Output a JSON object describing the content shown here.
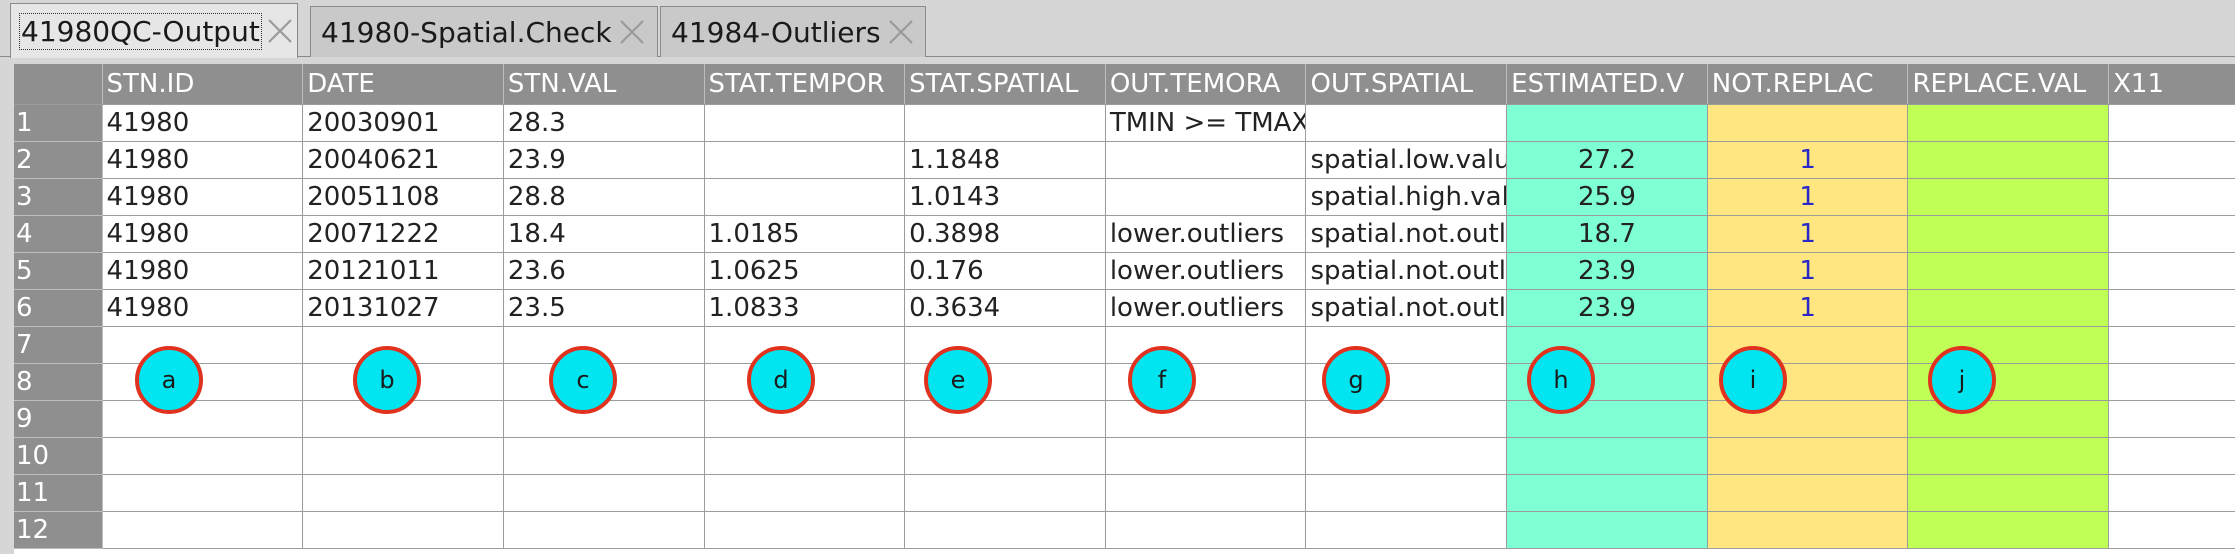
{
  "tabs": [
    {
      "label": "41980QC-Output",
      "active": true
    },
    {
      "label": "41980-Spatial.Check",
      "active": false
    },
    {
      "label": "41984-Outliers",
      "active": false
    }
  ],
  "grid": {
    "columns": [
      "STN.ID",
      "DATE",
      "STN.VAL",
      "STAT.TEMPOR",
      "STAT.SPATIAL",
      "OUT.TEMORA",
      "OUT.SPATIAL",
      "ESTIMATED.V",
      "NOT.REPLAC",
      "REPLACE.VAL",
      "X11"
    ],
    "rows": [
      {
        "num": "1",
        "cells": [
          "41980",
          "20030901",
          "28.3",
          "",
          "",
          "TMIN >= TMAX",
          "",
          "",
          "",
          "",
          ""
        ]
      },
      {
        "num": "2",
        "cells": [
          "41980",
          "20040621",
          "23.9",
          "",
          "1.1848",
          "",
          "spatial.low.valu",
          "27.2",
          "1",
          "",
          ""
        ]
      },
      {
        "num": "3",
        "cells": [
          "41980",
          "20051108",
          "28.8",
          "",
          "1.0143",
          "",
          "spatial.high.val",
          "25.9",
          "1",
          "",
          ""
        ]
      },
      {
        "num": "4",
        "cells": [
          "41980",
          "20071222",
          "18.4",
          "1.0185",
          "0.3898",
          "lower.outliers",
          "spatial.not.outli",
          "18.7",
          "1",
          "",
          ""
        ]
      },
      {
        "num": "5",
        "cells": [
          "41980",
          "20121011",
          "23.6",
          "1.0625",
          "0.176",
          "lower.outliers",
          "spatial.not.outli",
          "23.9",
          "1",
          "",
          ""
        ]
      },
      {
        "num": "6",
        "cells": [
          "41980",
          "20131027",
          "23.5",
          "1.0833",
          "0.3634",
          "lower.outliers",
          "spatial.not.outli",
          "23.9",
          "1",
          "",
          ""
        ]
      },
      {
        "num": "7",
        "cells": [
          "",
          "",
          "",
          "",
          "",
          "",
          "",
          "",
          "",
          "",
          ""
        ]
      },
      {
        "num": "8",
        "cells": [
          "",
          "",
          "",
          "",
          "",
          "",
          "",
          "",
          "",
          "",
          ""
        ]
      },
      {
        "num": "9",
        "cells": [
          "",
          "",
          "",
          "",
          "",
          "",
          "",
          "",
          "",
          "",
          ""
        ]
      },
      {
        "num": "10",
        "cells": [
          "",
          "",
          "",
          "",
          "",
          "",
          "",
          "",
          "",
          "",
          ""
        ]
      },
      {
        "num": "11",
        "cells": [
          "",
          "",
          "",
          "",
          "",
          "",
          "",
          "",
          "",
          "",
          ""
        ]
      },
      {
        "num": "12",
        "cells": [
          "",
          "",
          "",
          "",
          "",
          "",
          "",
          "",
          "",
          "",
          ""
        ]
      }
    ]
  },
  "markers": [
    "a",
    "b",
    "c",
    "d",
    "e",
    "f",
    "g",
    "h",
    "i",
    "j"
  ],
  "colors": {
    "estimated_col": "#7fffd4",
    "not_replaced_col": "#ffe680",
    "replace_val_col": "#c0ff55",
    "marker_fill": "#00e5f0",
    "marker_border": "#e0321e",
    "header_bg": "#8f8f8f"
  }
}
